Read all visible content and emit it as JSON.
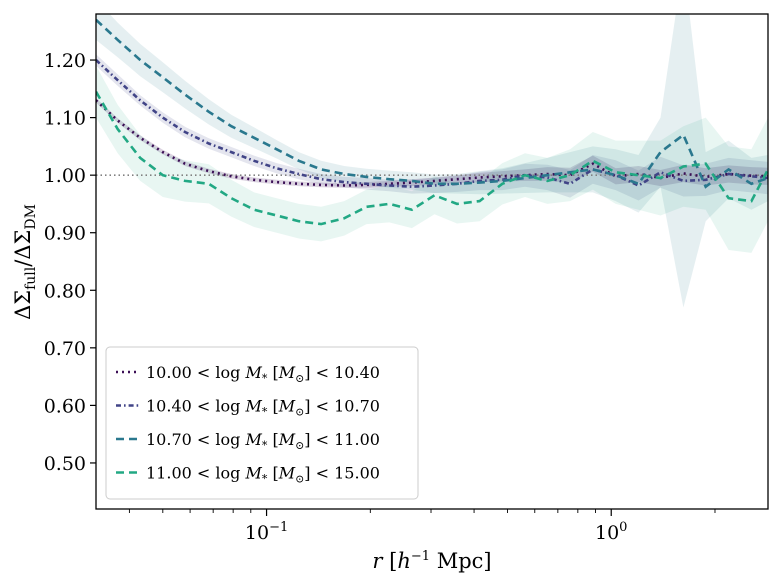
{
  "chart_data": {
    "type": "line",
    "xscale": "log",
    "xlim": [
      0.032,
      2.85
    ],
    "ylim": [
      0.42,
      1.28
    ],
    "xlabel": "r [h⁻¹ Mpc]",
    "ylabel": "ΔΣ_full / ΔΣ_DM",
    "x_ticks": [
      {
        "value": 0.1,
        "base": "10",
        "exp": "−1"
      },
      {
        "value": 1.0,
        "base": "10",
        "exp": "0"
      }
    ],
    "y_ticks": [
      {
        "value": 0.5,
        "label": "0.50"
      },
      {
        "value": 0.6,
        "label": "0.60"
      },
      {
        "value": 0.7,
        "label": "0.70"
      },
      {
        "value": 0.8,
        "label": "0.80"
      },
      {
        "value": 0.9,
        "label": "0.90"
      },
      {
        "value": 1.0,
        "label": "1.00"
      },
      {
        "value": 1.1,
        "label": "1.10"
      },
      {
        "value": 1.2,
        "label": "1.20"
      }
    ],
    "reference_line": 1.0,
    "legend_position": "lower-left",
    "x": [
      0.032,
      0.037,
      0.043,
      0.05,
      0.058,
      0.068,
      0.079,
      0.092,
      0.107,
      0.124,
      0.144,
      0.168,
      0.195,
      0.227,
      0.264,
      0.307,
      0.357,
      0.415,
      0.483,
      0.562,
      0.653,
      0.76,
      0.884,
      1.03,
      1.2,
      1.39,
      1.62,
      1.88,
      2.19,
      2.55,
      2.85
    ],
    "series": [
      {
        "name": "10.00 < log M* [M⊙] < 10.40",
        "dash": "2,4",
        "color": "#3b0f56",
        "band_opacity": 0.18,
        "values": [
          1.13,
          1.095,
          1.065,
          1.04,
          1.02,
          1.007,
          0.998,
          0.992,
          0.988,
          0.985,
          0.983,
          0.982,
          0.983,
          0.985,
          0.987,
          0.99,
          0.993,
          0.996,
          0.998,
          1.0,
          1.002,
          1.0,
          1.02,
          0.998,
          1.002,
          0.995,
          1.003,
          0.997,
          1.002,
          0.999,
          0.998
        ],
        "err": [
          0.004,
          0.004,
          0.004,
          0.004,
          0.004,
          0.004,
          0.004,
          0.004,
          0.004,
          0.004,
          0.004,
          0.004,
          0.005,
          0.005,
          0.006,
          0.006,
          0.007,
          0.008,
          0.009,
          0.01,
          0.012,
          0.013,
          0.014,
          0.014,
          0.014,
          0.014,
          0.015,
          0.015,
          0.015,
          0.015,
          0.015
        ]
      },
      {
        "name": "10.40 < log M* [M⊙] < 10.70",
        "dash": "5,3,1.6,3",
        "color": "#414487",
        "band_opacity": 0.14,
        "values": [
          1.2,
          1.165,
          1.13,
          1.1,
          1.075,
          1.055,
          1.04,
          1.025,
          1.012,
          1.002,
          0.993,
          0.988,
          0.985,
          0.982,
          0.98,
          0.982,
          0.985,
          0.99,
          0.992,
          1.0,
          0.996,
          0.985,
          1.01,
          1.0,
          0.982,
          1.005,
          0.99,
          0.992,
          1.002,
          0.998,
          0.995
        ],
        "err": [
          0.01,
          0.01,
          0.009,
          0.009,
          0.009,
          0.009,
          0.009,
          0.009,
          0.009,
          0.009,
          0.009,
          0.009,
          0.01,
          0.01,
          0.012,
          0.013,
          0.014,
          0.016,
          0.018,
          0.02,
          0.022,
          0.024,
          0.025,
          0.026,
          0.026,
          0.027,
          0.027,
          0.028,
          0.028,
          0.028,
          0.028
        ]
      },
      {
        "name": "10.70 < log M* [M⊙] < 11.00",
        "dash": "8,5",
        "color": "#2a788e",
        "band_opacity": 0.12,
        "values": [
          1.27,
          1.235,
          1.2,
          1.17,
          1.14,
          1.11,
          1.085,
          1.065,
          1.045,
          1.025,
          1.01,
          1.002,
          0.997,
          0.993,
          0.99,
          0.985,
          0.985,
          0.987,
          0.99,
          0.995,
          1.0,
          1.005,
          1.01,
          1.0,
          0.985,
          1.04,
          1.07,
          0.98,
          1.01,
          0.985,
          0.995
        ],
        "err": [
          0.035,
          0.03,
          0.028,
          0.026,
          0.024,
          0.022,
          0.02,
          0.018,
          0.016,
          0.015,
          0.015,
          0.014,
          0.014,
          0.015,
          0.015,
          0.016,
          0.017,
          0.02,
          0.022,
          0.026,
          0.03,
          0.035,
          0.04,
          0.045,
          0.05,
          0.06,
          0.3,
          0.06,
          0.05,
          0.045,
          0.04
        ]
      },
      {
        "name": "11.00 < log M* [M⊙] < 15.00",
        "dash": "8,5",
        "color": "#22a884",
        "band_opacity": 0.1,
        "values": [
          1.145,
          1.08,
          1.03,
          1.0,
          0.99,
          0.985,
          0.96,
          0.94,
          0.93,
          0.92,
          0.915,
          0.925,
          0.945,
          0.95,
          0.94,
          0.965,
          0.95,
          0.955,
          0.985,
          1.0,
          0.99,
          1.0,
          1.025,
          1.005,
          1.0,
          0.995,
          1.015,
          1.02,
          0.96,
          0.955,
          1.01
        ],
        "err": [
          0.045,
          0.042,
          0.04,
          0.038,
          0.036,
          0.034,
          0.032,
          0.03,
          0.03,
          0.03,
          0.03,
          0.03,
          0.03,
          0.032,
          0.032,
          0.033,
          0.034,
          0.035,
          0.036,
          0.038,
          0.04,
          0.045,
          0.05,
          0.055,
          0.06,
          0.065,
          0.07,
          0.08,
          0.09,
          0.09,
          0.09
        ]
      }
    ],
    "legend": [
      {
        "min": "10.00",
        "max": "10.40"
      },
      {
        "min": "10.40",
        "max": "10.70"
      },
      {
        "min": "10.70",
        "max": "11.00"
      },
      {
        "min": "11.00",
        "max": "15.00"
      }
    ],
    "legend_parts": {
      "lt": " < ",
      "log": "log ",
      "M": "M",
      "star": "*",
      "open": " [",
      "sun": "M",
      "sun_sub": "⊙",
      "close": "]"
    },
    "xlabel_parts": {
      "r": "r",
      "open": " [",
      "h": "h",
      "exp": "−1",
      "unit": " Mpc",
      "close": "]"
    },
    "ylabel_parts": {
      "d1": "ΔΣ",
      "sub1": "full",
      "slash": "/",
      "d2": "ΔΣ",
      "sub2": "DM"
    }
  }
}
